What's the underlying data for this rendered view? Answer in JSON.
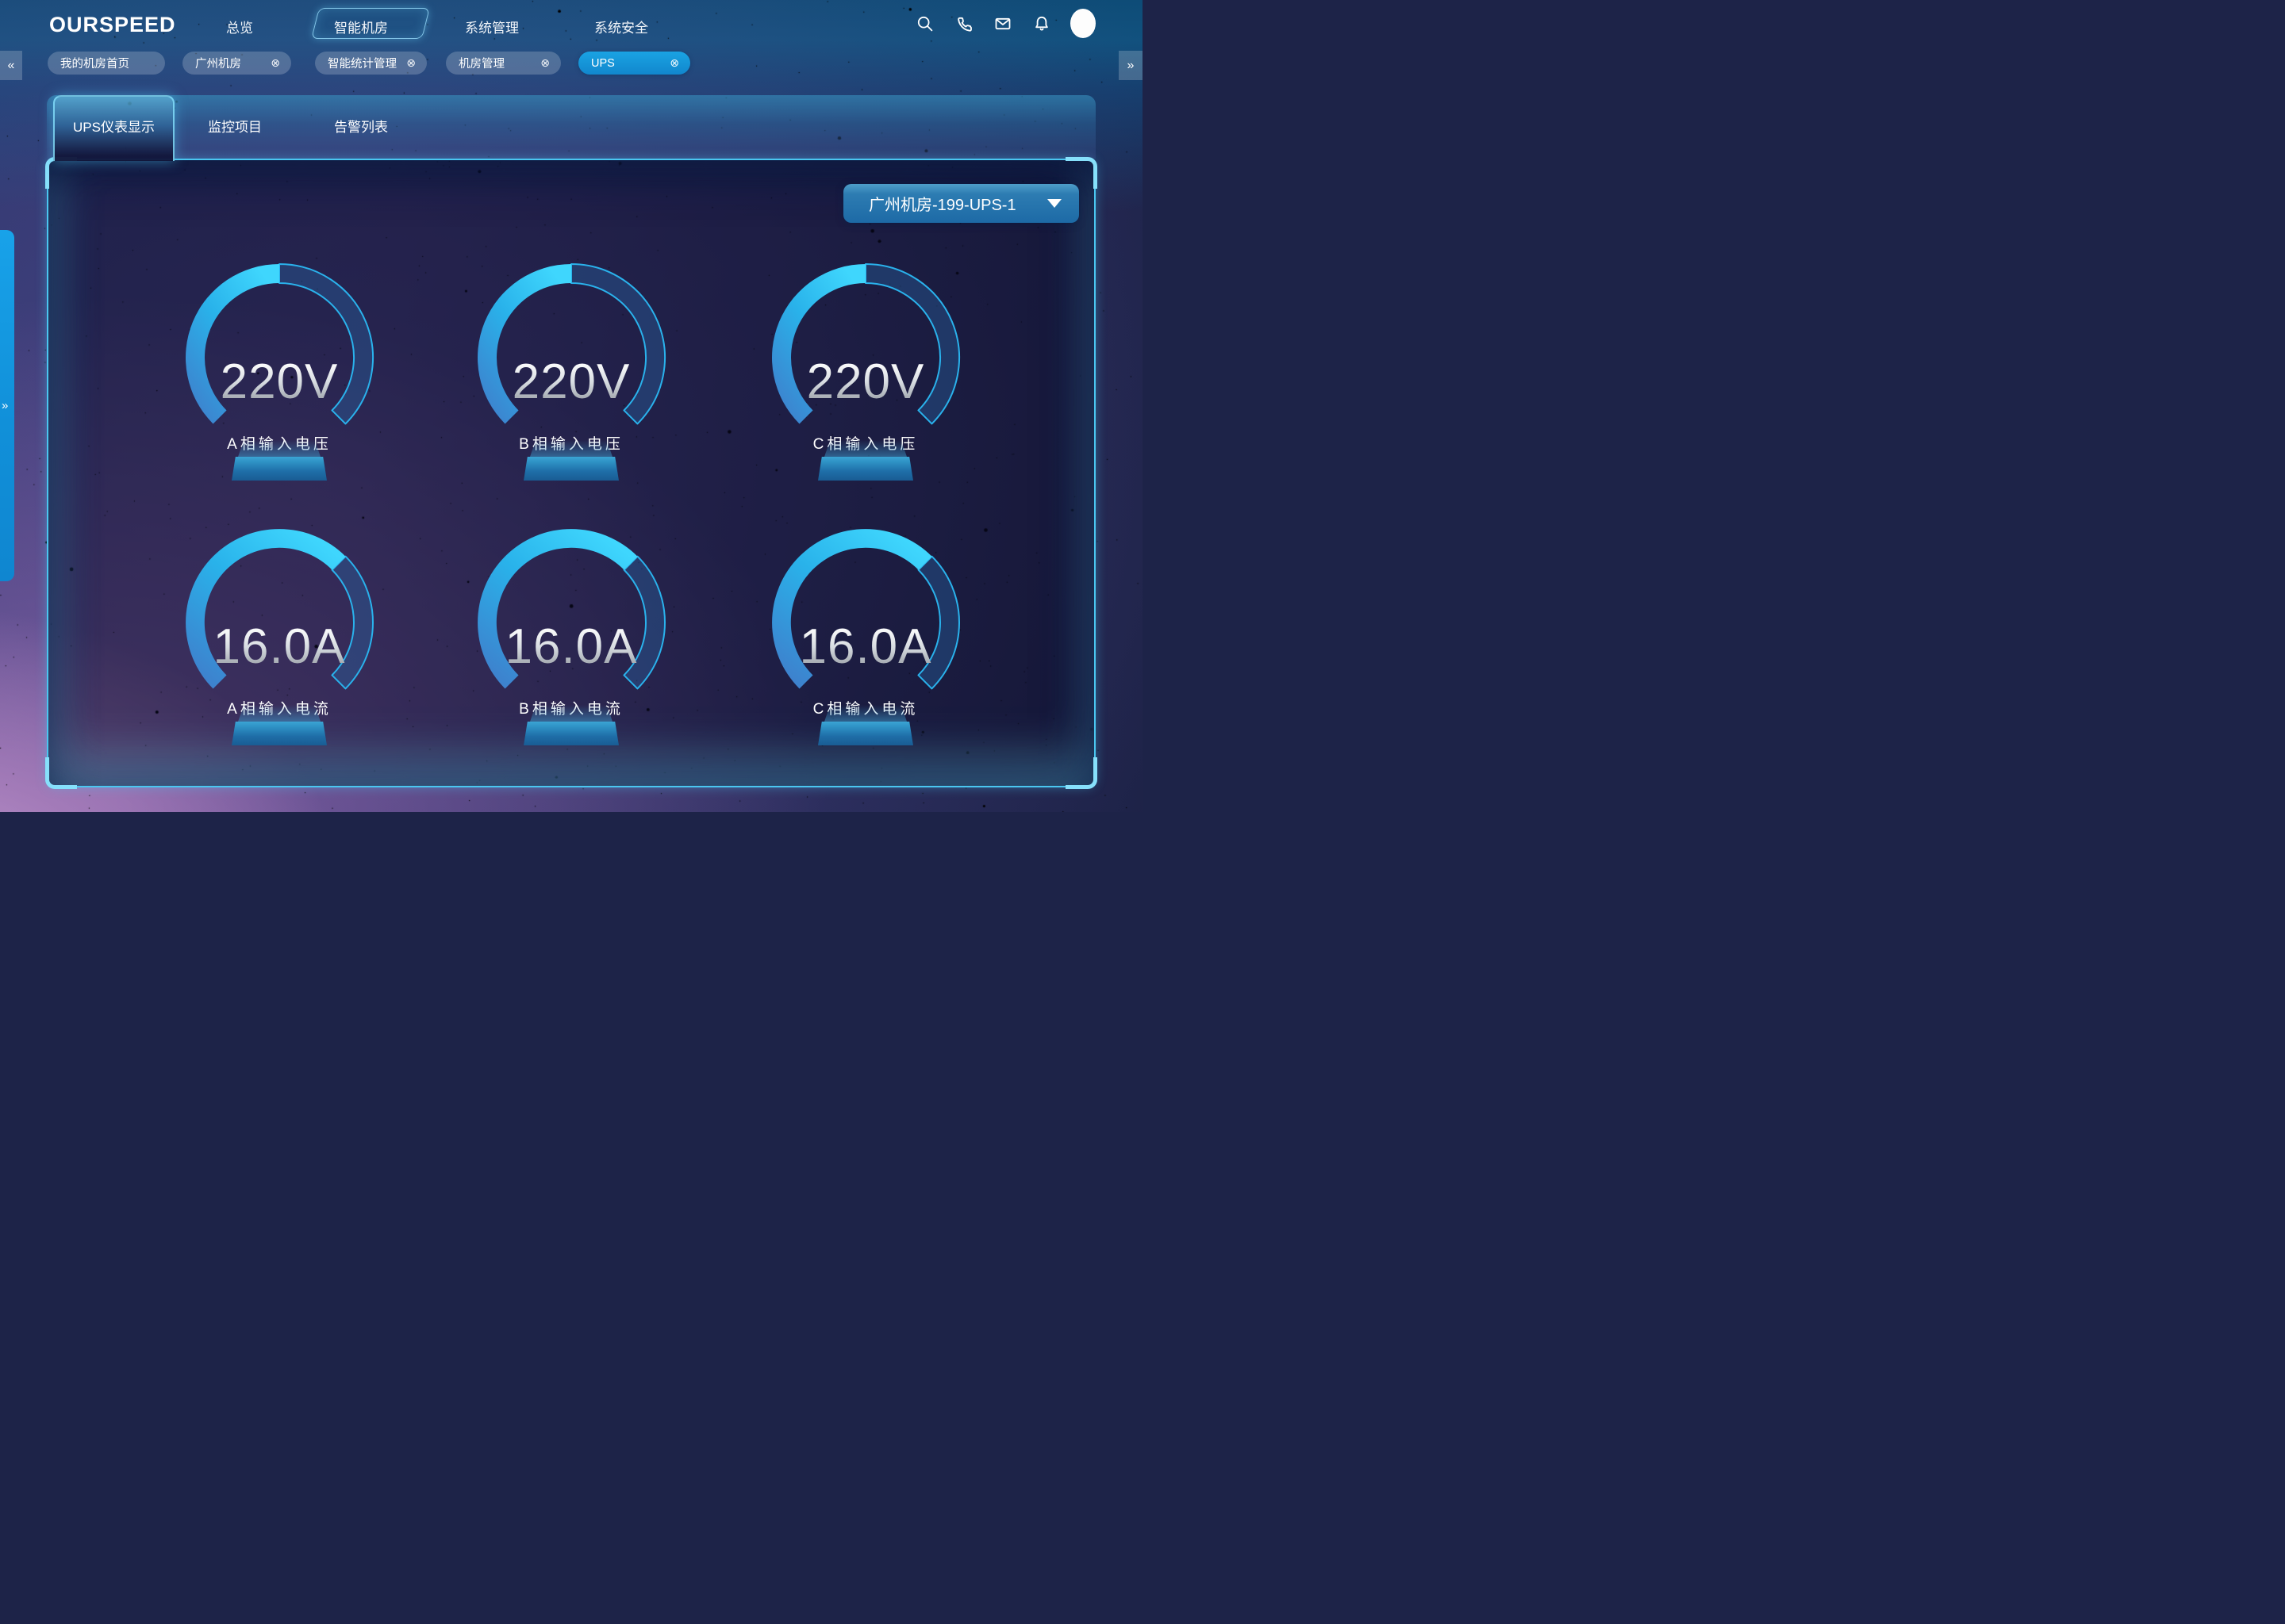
{
  "header": {
    "logo": "OURSPEED",
    "nav_items": [
      {
        "label": "总览",
        "active": false
      },
      {
        "label": "智能机房",
        "active": true
      },
      {
        "label": "系统管理",
        "active": false
      },
      {
        "label": "系统安全",
        "active": false
      }
    ],
    "action_icons": [
      "search",
      "phone",
      "mail",
      "bell"
    ],
    "avatar": "user-avatar"
  },
  "breadcrumb_bar": {
    "scroll_left_glyph": "«",
    "scroll_right_glyph": "»",
    "close_glyph": "⊗",
    "chips": [
      {
        "label": "我的机房首页",
        "closable": false,
        "active": false
      },
      {
        "label": "广州机房",
        "closable": true,
        "active": false
      },
      {
        "label": "智能统计管理",
        "closable": true,
        "active": false
      },
      {
        "label": "机房管理",
        "closable": true,
        "active": false
      },
      {
        "label": "UPS",
        "closable": true,
        "active": true
      }
    ]
  },
  "tabs": [
    {
      "label": "UPS仪表显示",
      "active": true
    },
    {
      "label": "监控项目",
      "active": false
    },
    {
      "label": "告警列表",
      "active": false
    }
  ],
  "panel": {
    "device_selector": {
      "value": "广州机房-199-UPS-1"
    },
    "drawer_expand_glyph": "»"
  },
  "chart_data": {
    "type": "gauge-grid",
    "arc_span_deg": 270,
    "gap_position": "bottom",
    "gauges": [
      {
        "value": "220V",
        "label": "A相输入电压",
        "metric": "phase-a-input-voltage",
        "fill_ratio": 0.5
      },
      {
        "value": "220V",
        "label": "B相输入电压",
        "metric": "phase-b-input-voltage",
        "fill_ratio": 0.5
      },
      {
        "value": "220V",
        "label": "C相输入电压",
        "metric": "phase-c-input-voltage",
        "fill_ratio": 0.5
      },
      {
        "value": "16.0A",
        "label": "A相输入电流",
        "metric": "phase-a-input-current",
        "fill_ratio": 0.667
      },
      {
        "value": "16.0A",
        "label": "B相输入电流",
        "metric": "phase-b-input-current",
        "fill_ratio": 0.667
      },
      {
        "value": "16.0A",
        "label": "C相输入电流",
        "metric": "phase-c-input-current",
        "fill_ratio": 0.667
      }
    ]
  },
  "colors": {
    "accent_cyan": "#4ac6f0",
    "active_chip_blue": "#1798dc",
    "gauge_fill_top": "#3fd6fd",
    "gauge_fill_mid": "#29b2ea",
    "gauge_fill_bottom": "#3f7ecb",
    "gauge_track_fill": "rgba(42,105,168,0.38)",
    "gauge_track_stroke": "#2ab2ec",
    "pedestal_blue": "#1f6fa9"
  }
}
